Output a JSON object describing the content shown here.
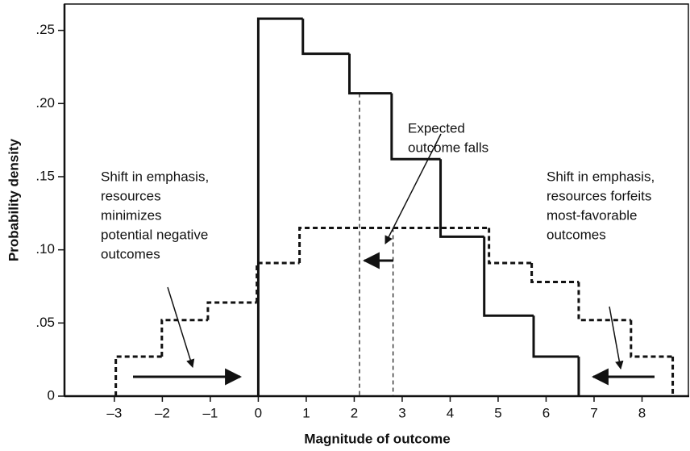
{
  "chart_data": {
    "type": "step-histogram",
    "xlabel": "Magnitude of outcome",
    "ylabel": "Probability density",
    "xlim": [
      -4.04,
      9.0
    ],
    "ylim": [
      0,
      0.268
    ],
    "xticks": [
      {
        "value": -3,
        "label": "–3"
      },
      {
        "value": -2,
        "label": "–2"
      },
      {
        "value": -1,
        "label": "–1"
      },
      0,
      1,
      2,
      3,
      4,
      5,
      6,
      7,
      8
    ],
    "yticks": [
      0,
      {
        "value": 0.05,
        "label": ".05"
      },
      {
        "value": 0.1,
        "label": ".10"
      },
      {
        "value": 0.15,
        "label": ".15"
      },
      {
        "value": 0.2,
        "label": ".20"
      },
      {
        "value": 0.25,
        "label": ".25"
      }
    ],
    "series": [
      {
        "style": "solid",
        "color": "#111111",
        "bins": [
          0,
          0.93,
          1.9,
          2.78,
          3.8,
          4.71,
          5.74,
          6.68
        ],
        "values": [
          0.258,
          0.234,
          0.207,
          0.162,
          0.109,
          0.055,
          0.027
        ]
      },
      {
        "style": "dashed",
        "color": "#111111",
        "bins": [
          -2.97,
          -2.01,
          -1.05,
          -0.03,
          0.86,
          4.81,
          5.7,
          6.68,
          7.77,
          8.64
        ],
        "values": [
          0.027,
          0.052,
          0.064,
          0.091,
          0.115,
          0.091,
          0.078,
          0.052,
          0.027
        ]
      }
    ],
    "reference_lines": [
      {
        "x": 2.11,
        "top": 0.207
      },
      {
        "x": 2.81,
        "top": 0.115
      }
    ],
    "annotations": [
      {
        "lines": [
          "Shift in emphasis,",
          "resources",
          "minimizes",
          "potential negative",
          "outcomes"
        ]
      },
      {
        "lines": [
          "Expected",
          "outcome falls"
        ]
      },
      {
        "lines": [
          "Shift in emphasis,",
          "resources forfeits",
          "most-favorable",
          "outcomes"
        ]
      }
    ]
  }
}
